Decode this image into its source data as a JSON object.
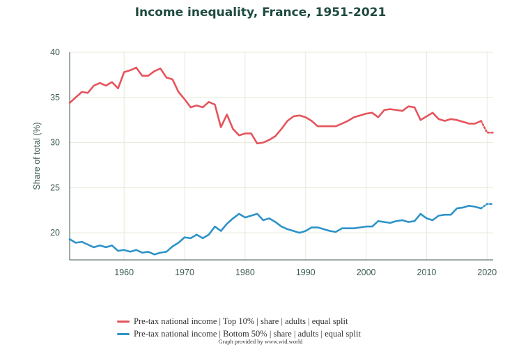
{
  "colors": {
    "top10": "#e5545c",
    "bottom50": "#2e93c8",
    "grid": "#e7e9d8",
    "axis": "#3d5a54"
  },
  "chart_data": {
    "type": "line",
    "title": "Income inequality, France, 1951-2021",
    "xlabel": "",
    "ylabel": "Share of total (%)",
    "xlim": [
      1951,
      2021
    ],
    "ylim": [
      17,
      40
    ],
    "xticks": [
      1960,
      1970,
      1980,
      1990,
      2000,
      2010,
      2020
    ],
    "yticks": [
      20,
      25,
      30,
      35,
      40
    ],
    "grid": true,
    "legend_position": "bottom",
    "dotted_after": 2019,
    "series": [
      {
        "name": "Pre-tax national income | Top 10% | share | adults | equal split",
        "color": "#e5545c",
        "x": [
          1951,
          1952,
          1953,
          1954,
          1955,
          1956,
          1957,
          1958,
          1959,
          1960,
          1961,
          1962,
          1963,
          1964,
          1965,
          1966,
          1967,
          1968,
          1969,
          1970,
          1971,
          1972,
          1973,
          1974,
          1975,
          1976,
          1977,
          1978,
          1979,
          1980,
          1981,
          1982,
          1983,
          1984,
          1985,
          1986,
          1987,
          1988,
          1989,
          1990,
          1991,
          1992,
          1993,
          1994,
          1995,
          1996,
          1997,
          1998,
          1999,
          2000,
          2001,
          2002,
          2003,
          2004,
          2005,
          2006,
          2007,
          2008,
          2009,
          2010,
          2011,
          2012,
          2013,
          2014,
          2015,
          2016,
          2017,
          2018,
          2019,
          2020,
          2021
        ],
        "y": [
          34.4,
          35.0,
          35.6,
          35.5,
          36.3,
          36.6,
          36.3,
          36.7,
          36.0,
          37.8,
          38.0,
          38.3,
          37.4,
          37.4,
          37.9,
          38.2,
          37.2,
          37.0,
          35.6,
          34.8,
          33.9,
          34.1,
          33.9,
          34.5,
          34.2,
          31.7,
          33.1,
          31.5,
          30.8,
          31.0,
          31.0,
          29.9,
          30.0,
          30.3,
          30.7,
          31.5,
          32.4,
          32.9,
          33.0,
          32.8,
          32.4,
          31.8,
          31.8,
          31.8,
          31.8,
          32.1,
          32.4,
          32.8,
          33.0,
          33.2,
          33.3,
          32.8,
          33.6,
          33.7,
          33.6,
          33.5,
          34.0,
          33.9,
          32.5,
          32.9,
          33.3,
          32.6,
          32.4,
          32.6,
          32.5,
          32.3,
          32.1,
          32.1,
          32.4,
          31.1,
          31.1
        ]
      },
      {
        "name": "Pre-tax national income | Bottom 50% | share | adults | equal split",
        "color": "#2e93c8",
        "x": [
          1951,
          1952,
          1953,
          1954,
          1955,
          1956,
          1957,
          1958,
          1959,
          1960,
          1961,
          1962,
          1963,
          1964,
          1965,
          1966,
          1967,
          1968,
          1969,
          1970,
          1971,
          1972,
          1973,
          1974,
          1975,
          1976,
          1977,
          1978,
          1979,
          1980,
          1981,
          1982,
          1983,
          1984,
          1985,
          1986,
          1987,
          1988,
          1989,
          1990,
          1991,
          1992,
          1993,
          1994,
          1995,
          1996,
          1997,
          1998,
          1999,
          2000,
          2001,
          2002,
          2003,
          2004,
          2005,
          2006,
          2007,
          2008,
          2009,
          2010,
          2011,
          2012,
          2013,
          2014,
          2015,
          2016,
          2017,
          2018,
          2019,
          2020,
          2021
        ],
        "y": [
          19.3,
          18.9,
          19.0,
          18.7,
          18.4,
          18.6,
          18.4,
          18.6,
          18.0,
          18.1,
          17.9,
          18.1,
          17.8,
          17.9,
          17.6,
          17.8,
          17.9,
          18.5,
          18.9,
          19.5,
          19.4,
          19.8,
          19.4,
          19.8,
          20.7,
          20.2,
          21.0,
          21.6,
          22.1,
          21.7,
          21.9,
          22.1,
          21.4,
          21.6,
          21.2,
          20.7,
          20.4,
          20.2,
          20.0,
          20.2,
          20.6,
          20.6,
          20.4,
          20.2,
          20.1,
          20.5,
          20.5,
          20.5,
          20.6,
          20.7,
          20.7,
          21.3,
          21.2,
          21.1,
          21.3,
          21.4,
          21.2,
          21.3,
          22.1,
          21.6,
          21.4,
          21.9,
          22.0,
          22.0,
          22.7,
          22.8,
          23.0,
          22.9,
          22.7,
          23.2,
          23.2
        ]
      }
    ],
    "credit": "Graph provided by www.wid.world"
  }
}
